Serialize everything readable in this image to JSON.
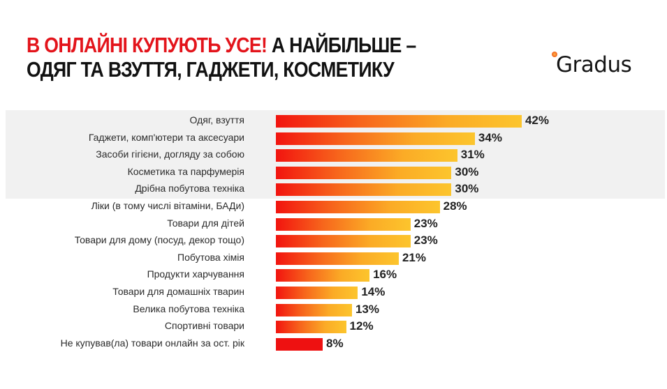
{
  "header": {
    "title_red": "В ОНЛАЙНІ КУПУЮТЬ УСЕ!",
    "title_black_1": " А НАЙБІЛЬШЕ –",
    "title_black_2": "ОДЯГ ТА ВЗУТТЯ, ГАДЖЕТИ, КОСМЕТИКУ",
    "logo": "Gradus"
  },
  "colors": {
    "accent_red": "#e3141b",
    "bar_start": "#f2140f",
    "bar_end": "#fcc52d",
    "highlight_band": "#f1f1f1"
  },
  "chart_data": {
    "type": "bar",
    "orientation": "horizontal",
    "title": "В ОНЛАЙНІ КУПУЮТЬ УСЕ! А НАЙБІЛЬШЕ – ОДЯГ ТА ВЗУТТЯ, ГАДЖЕТИ, КОСМЕТИКУ",
    "xlabel": "",
    "ylabel": "",
    "unit": "%",
    "grid": false,
    "legend": null,
    "highlighted_top_n": 5,
    "categories": [
      "Одяг, взуття",
      "Гаджети, комп'ютери та аксесуари",
      "Засоби гігієни, догляду за собою",
      "Косметика та парфумерія",
      "Дрібна побутова техніка",
      "Ліки (в тому числі вітаміни, БАДи)",
      "Товари для дітей",
      "Товари для дому (посуд, декор тощо)",
      "Побутова хімія",
      "Продукти харчування",
      "Товари для домашніх тварин",
      "Велика побутова техніка",
      "Спортивні товари",
      "Не купував(ла) товари онлайн за ост. рік"
    ],
    "values": [
      42,
      34,
      31,
      30,
      30,
      28,
      23,
      23,
      21,
      16,
      14,
      13,
      12,
      8
    ],
    "labels": [
      "42%",
      "34%",
      "31%",
      "30%",
      "30%",
      "28%",
      "23%",
      "23%",
      "21%",
      "16%",
      "14%",
      "13%",
      "12%",
      "8%"
    ]
  }
}
